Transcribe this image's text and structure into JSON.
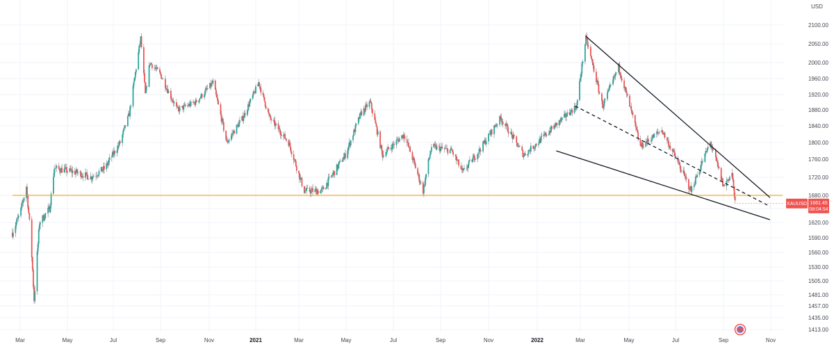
{
  "chart_data": {
    "type": "candlestick",
    "currency": "USD",
    "symbol": "XAUUSD",
    "last_price": "1661.45",
    "countdown": "08:04:54",
    "colors": {
      "up": "#26a69a",
      "down": "#ef5350",
      "support": "#f5a623",
      "trendline": "#131722",
      "price_tag": "#ef5350"
    },
    "y_ticks": [
      "2100.00",
      "2050.00",
      "2000.00",
      "1960.00",
      "1920.00",
      "1880.00",
      "1840.00",
      "1800.00",
      "1760.00",
      "1720.00",
      "1680.00",
      "1650.00",
      "1620.00",
      "1590.00",
      "1560.00",
      "1530.00",
      "1505.00",
      "1481.00",
      "1457.00",
      "1435.00",
      "1413.00"
    ],
    "x_ticks": [
      {
        "label": "Mar",
        "bold": false
      },
      {
        "label": "May",
        "bold": false
      },
      {
        "label": "Jul",
        "bold": false
      },
      {
        "label": "Sep",
        "bold": false
      },
      {
        "label": "Nov",
        "bold": false
      },
      {
        "label": "2021",
        "bold": true
      },
      {
        "label": "Mar",
        "bold": false
      },
      {
        "label": "May",
        "bold": false
      },
      {
        "label": "Jul",
        "bold": false
      },
      {
        "label": "Sep",
        "bold": false
      },
      {
        "label": "Nov",
        "bold": false
      },
      {
        "label": "2022",
        "bold": true
      },
      {
        "label": "Mar",
        "bold": false
      },
      {
        "label": "May",
        "bold": false
      },
      {
        "label": "Jul",
        "bold": false
      },
      {
        "label": "Sep",
        "bold": false
      },
      {
        "label": "Nov",
        "bold": false
      }
    ],
    "x_range": [
      "2020-03",
      "2022-11"
    ],
    "price_path": [
      [
        "2020-02-20",
        1600
      ],
      [
        "2020-03-01",
        1640
      ],
      [
        "2020-03-09",
        1700
      ],
      [
        "2020-03-15",
        1580
      ],
      [
        "2020-03-19",
        1470
      ],
      [
        "2020-03-26",
        1620
      ],
      [
        "2020-04-08",
        1650
      ],
      [
        "2020-04-14",
        1740
      ],
      [
        "2020-05-15",
        1730
      ],
      [
        "2020-06-01",
        1720
      ],
      [
        "2020-06-20",
        1740
      ],
      [
        "2020-07-10",
        1800
      ],
      [
        "2020-07-22",
        1870
      ],
      [
        "2020-08-06",
        2065
      ],
      [
        "2020-08-12",
        1920
      ],
      [
        "2020-08-18",
        2000
      ],
      [
        "2020-09-01",
        1970
      ],
      [
        "2020-09-22",
        1880
      ],
      [
        "2020-10-15",
        1900
      ],
      [
        "2020-11-06",
        1950
      ],
      [
        "2020-11-24",
        1800
      ],
      [
        "2020-12-15",
        1860
      ],
      [
        "2021-01-05",
        1950
      ],
      [
        "2021-01-20",
        1860
      ],
      [
        "2021-02-15",
        1800
      ],
      [
        "2021-03-08",
        1690
      ],
      [
        "2021-03-31",
        1690
      ],
      [
        "2021-04-30",
        1770
      ],
      [
        "2021-05-20",
        1870
      ],
      [
        "2021-06-01",
        1900
      ],
      [
        "2021-06-17",
        1770
      ],
      [
        "2021-07-15",
        1820
      ],
      [
        "2021-08-09",
        1690
      ],
      [
        "2021-08-20",
        1790
      ],
      [
        "2021-09-15",
        1780
      ],
      [
        "2021-09-29",
        1730
      ],
      [
        "2021-10-20",
        1780
      ],
      [
        "2021-11-16",
        1860
      ],
      [
        "2021-12-15",
        1770
      ],
      [
        "2022-01-25",
        1840
      ],
      [
        "2022-02-24",
        1890
      ],
      [
        "2022-03-08",
        2065
      ],
      [
        "2022-03-29",
        1890
      ],
      [
        "2022-04-18",
        1990
      ],
      [
        "2022-05-16",
        1790
      ],
      [
        "2022-06-13",
        1830
      ],
      [
        "2022-07-21",
        1690
      ],
      [
        "2022-08-15",
        1800
      ],
      [
        "2022-09-01",
        1700
      ],
      [
        "2022-09-12",
        1730
      ],
      [
        "2022-09-16",
        1661
      ]
    ],
    "support_level": 1680,
    "trendlines": [
      {
        "name": "upper",
        "style": "solid",
        "from": [
          "2022-03-08",
          2070
        ],
        "to": [
          "2022-10-31",
          1675
        ]
      },
      {
        "name": "lower",
        "style": "solid",
        "from": [
          "2022-01-27",
          1780
        ],
        "to": [
          "2022-10-31",
          1626
        ]
      },
      {
        "name": "mid",
        "style": "dashed",
        "from": [
          "2022-02-22",
          1890
        ],
        "to": [
          "2022-10-31",
          1655
        ]
      }
    ]
  }
}
